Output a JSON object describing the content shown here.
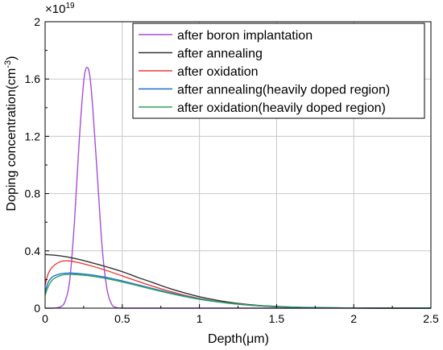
{
  "chart_data": {
    "type": "line",
    "xlabel": "Depth(μm)",
    "ylabel_main": "Doping concentration(cm",
    "ylabel_sup": "-3",
    "ylabel_tail": ")",
    "multiplier": "×10",
    "multiplier_exp": "19",
    "xlim": [
      0,
      2.5
    ],
    "ylim": [
      0,
      2
    ],
    "xticks": [
      {
        "v": 0,
        "label": "0"
      },
      {
        "v": 0.5,
        "label": "0.5"
      },
      {
        "v": 1,
        "label": "1"
      },
      {
        "v": 1.5,
        "label": "1.5"
      },
      {
        "v": 2,
        "label": "2"
      },
      {
        "v": 2.5,
        "label": "2.5"
      }
    ],
    "yticks": [
      {
        "v": 0,
        "label": "0"
      },
      {
        "v": 0.4,
        "label": "0.4"
      },
      {
        "v": 0.8,
        "label": "0.8"
      },
      {
        "v": 1.2,
        "label": "1.2"
      },
      {
        "v": 1.6,
        "label": "1.6"
      },
      {
        "v": 2,
        "label": "2"
      }
    ],
    "grid": true,
    "legend_position": "top-right",
    "series": [
      {
        "name": "after boron implantation",
        "color": "#a64ed6",
        "x": [
          0,
          0.05,
          0.1,
          0.13,
          0.16,
          0.19,
          0.22,
          0.25,
          0.27,
          0.29,
          0.31,
          0.34,
          0.37,
          0.4,
          0.43,
          0.46,
          0.5,
          0.6,
          1.0,
          1.5,
          2.0,
          2.5
        ],
        "y": [
          0,
          0,
          0.01,
          0.05,
          0.2,
          0.6,
          1.15,
          1.58,
          1.68,
          1.62,
          1.38,
          0.9,
          0.42,
          0.14,
          0.03,
          0.005,
          0,
          0,
          0,
          0,
          0,
          0
        ]
      },
      {
        "name": "after annealing",
        "color": "#333333",
        "x": [
          0,
          0.1,
          0.2,
          0.3,
          0.4,
          0.5,
          0.6,
          0.7,
          0.8,
          0.9,
          1.0,
          1.1,
          1.2,
          1.3,
          1.4,
          1.5,
          1.6,
          1.7,
          1.8,
          2.0,
          2.2,
          2.5
        ],
        "y": [
          0.375,
          0.365,
          0.345,
          0.318,
          0.288,
          0.255,
          0.215,
          0.178,
          0.14,
          0.108,
          0.08,
          0.058,
          0.04,
          0.027,
          0.018,
          0.012,
          0.007,
          0.004,
          0.002,
          0.001,
          0,
          0
        ]
      },
      {
        "name": "after oxidation",
        "color": "#e8403a",
        "x": [
          0,
          0.02,
          0.05,
          0.1,
          0.15,
          0.2,
          0.3,
          0.4,
          0.5,
          0.6,
          0.7,
          0.8,
          0.9,
          1.0,
          1.1,
          1.2,
          1.3,
          1.4,
          1.5,
          1.7,
          2.0,
          2.5
        ],
        "y": [
          0.16,
          0.24,
          0.29,
          0.325,
          0.33,
          0.322,
          0.295,
          0.262,
          0.225,
          0.188,
          0.152,
          0.12,
          0.091,
          0.068,
          0.049,
          0.034,
          0.023,
          0.015,
          0.01,
          0.004,
          0.001,
          0
        ]
      },
      {
        "name": "after annealing(heavily doped region)",
        "color": "#1f6fd6",
        "x": [
          0,
          0.02,
          0.05,
          0.1,
          0.15,
          0.2,
          0.3,
          0.4,
          0.5,
          0.6,
          0.7,
          0.8,
          0.9,
          1.0,
          1.1,
          1.2,
          1.3,
          1.4,
          1.5,
          1.7,
          2.0,
          2.5
        ],
        "y": [
          0.11,
          0.18,
          0.22,
          0.24,
          0.245,
          0.243,
          0.232,
          0.214,
          0.19,
          0.163,
          0.136,
          0.11,
          0.086,
          0.065,
          0.048,
          0.034,
          0.024,
          0.016,
          0.011,
          0.005,
          0.001,
          0
        ]
      },
      {
        "name": "after oxidation(heavily doped region)",
        "color": "#2aa35a",
        "x": [
          0,
          0.02,
          0.05,
          0.1,
          0.15,
          0.2,
          0.3,
          0.4,
          0.5,
          0.6,
          0.7,
          0.8,
          0.9,
          1.0,
          1.1,
          1.2,
          1.3,
          1.4,
          1.5,
          1.7,
          2.0,
          2.5
        ],
        "y": [
          0.09,
          0.15,
          0.2,
          0.228,
          0.235,
          0.234,
          0.224,
          0.206,
          0.183,
          0.157,
          0.13,
          0.105,
          0.082,
          0.062,
          0.046,
          0.033,
          0.023,
          0.015,
          0.01,
          0.004,
          0.001,
          0
        ]
      }
    ]
  }
}
